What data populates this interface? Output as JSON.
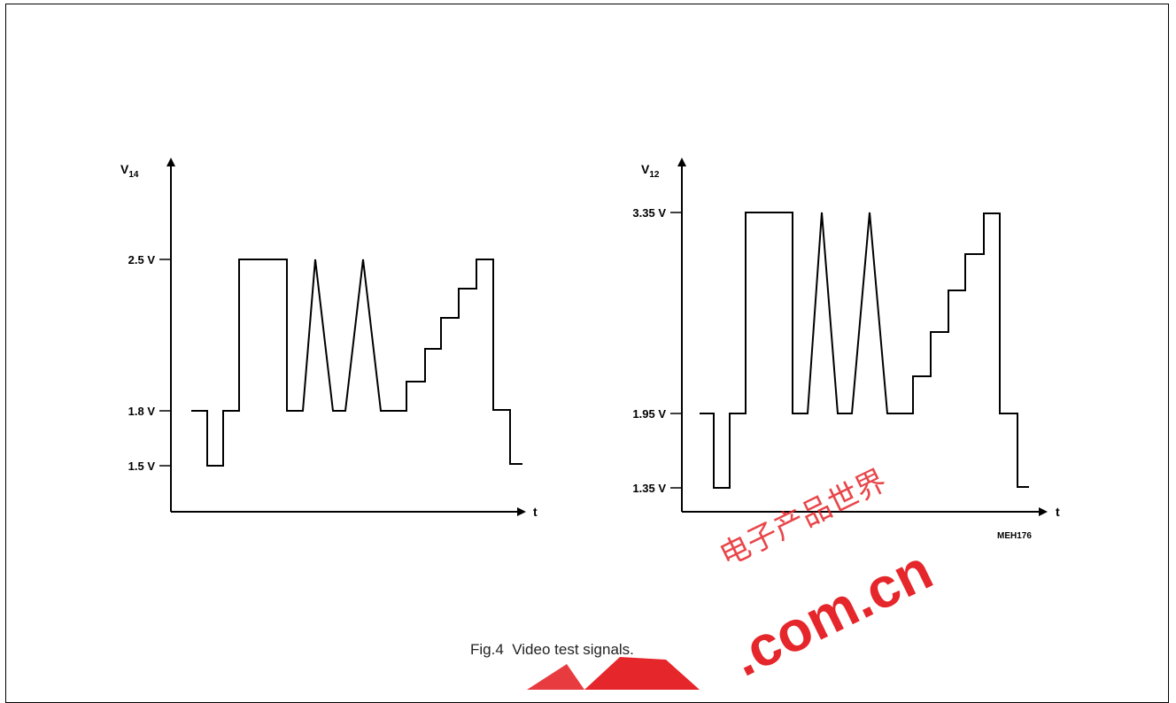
{
  "figure": {
    "caption": "Fig.4  Video test signals.",
    "code": "MEH176"
  },
  "watermark": {
    "text": ".com.cn",
    "chinese": "电子产品世界",
    "color": "#e5262b"
  },
  "left_plot": {
    "y_axis": {
      "symbol": "V",
      "subscript": "14"
    },
    "x_axis": {
      "label": "t"
    },
    "levels": [
      {
        "label": "2.5 V",
        "value": 2.5
      },
      {
        "label": "1.8 V",
        "value": 1.8
      },
      {
        "label": "1.5 V",
        "value": 1.5
      }
    ]
  },
  "right_plot": {
    "y_axis": {
      "symbol": "V",
      "subscript": "12"
    },
    "x_axis": {
      "label": "t"
    },
    "levels": [
      {
        "label": "3.35 V",
        "value": 3.35
      },
      {
        "label": "1.95 V",
        "value": 1.95
      },
      {
        "label": "1.35 V",
        "value": 1.35
      }
    ]
  }
}
